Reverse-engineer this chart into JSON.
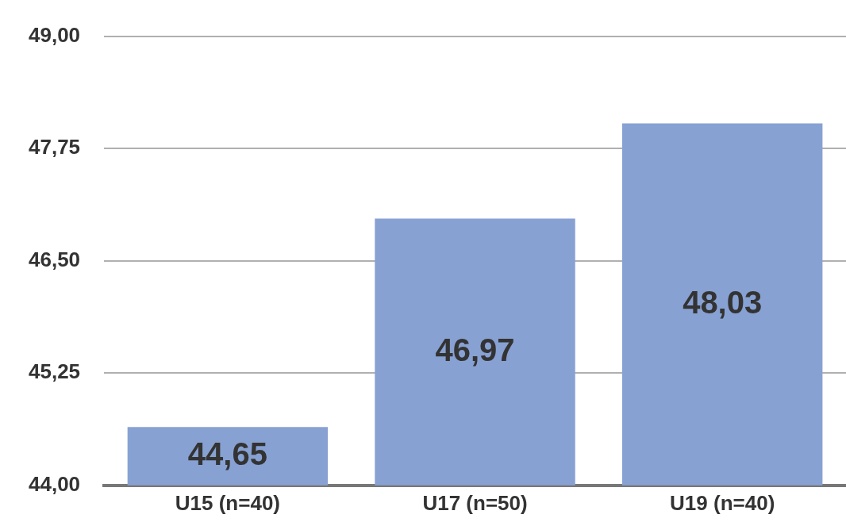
{
  "chart_data": {
    "type": "bar",
    "categories": [
      "U15 (n=40)",
      "U17 (n=50)",
      "U19 (n=40)"
    ],
    "values": [
      44.65,
      46.97,
      48.03
    ],
    "value_labels": [
      "44,65",
      "46,97",
      "48,03"
    ],
    "color": "#87a1d3",
    "ylim": [
      44,
      49
    ],
    "yticks": [
      {
        "value": 44,
        "label": "44,00"
      },
      {
        "value": 45.25,
        "label": "45,25"
      },
      {
        "value": 46.5,
        "label": "46,50"
      },
      {
        "value": 47.75,
        "label": "47,75"
      },
      {
        "value": 49,
        "label": "49,00"
      }
    ],
    "grid": "y",
    "legend": false
  }
}
